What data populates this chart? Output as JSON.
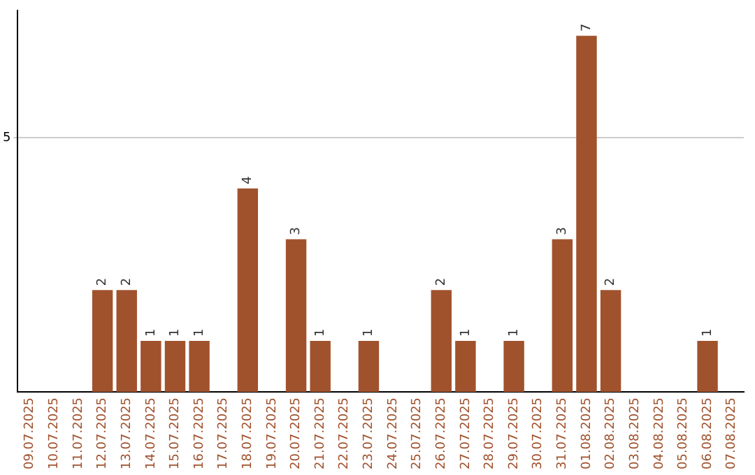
{
  "chart_data": {
    "type": "bar",
    "categories": [
      "09.07.2025",
      "10.07.2025",
      "11.07.2025",
      "12.07.2025",
      "13.07.2025",
      "14.07.2025",
      "15.07.2025",
      "16.07.2025",
      "17.07.2025",
      "18.07.2025",
      "19.07.2025",
      "20.07.2025",
      "21.07.2025",
      "22.07.2025",
      "23.07.2025",
      "24.07.2025",
      "25.07.2025",
      "26.07.2025",
      "27.07.2025",
      "28.07.2025",
      "29.07.2025",
      "30.07.2025",
      "31.07.2025",
      "01.08.2025",
      "02.08.2025",
      "03.08.2025",
      "04.08.2025",
      "05.08.2025",
      "06.08.2025",
      "07.08.2025"
    ],
    "values": [
      null,
      null,
      null,
      2,
      2,
      1,
      1,
      1,
      null,
      4,
      null,
      3,
      1,
      null,
      1,
      null,
      null,
      2,
      1,
      null,
      1,
      null,
      3,
      7,
      2,
      null,
      null,
      null,
      1,
      null
    ],
    "color": "#a0522d",
    "ylim": [
      0,
      7.5
    ],
    "yticks": [
      5
    ],
    "grid": "y",
    "legend": false,
    "data_labels": true
  }
}
